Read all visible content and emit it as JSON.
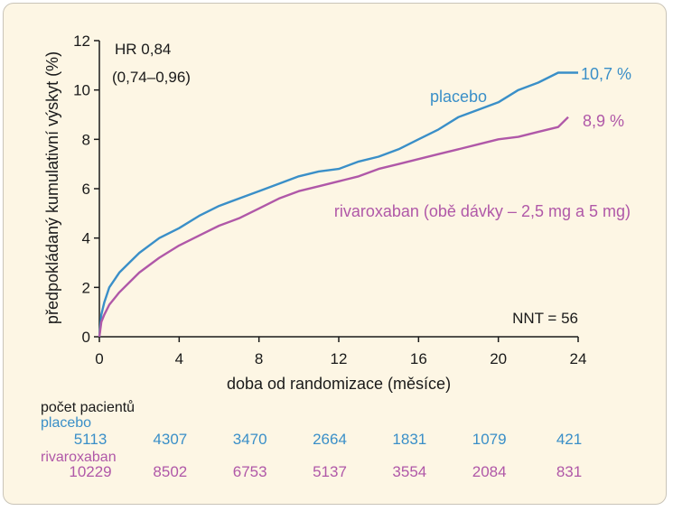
{
  "chart_data": {
    "type": "line",
    "xlabel": "doba od randomizace (měsíce)",
    "ylabel": "předpokládaný kumulativní výskyt (%)",
    "xlim": [
      0,
      24
    ],
    "ylim": [
      0,
      12
    ],
    "x_ticks": [
      0,
      4,
      8,
      12,
      16,
      20,
      24
    ],
    "y_ticks": [
      0,
      2,
      4,
      6,
      8,
      10,
      12
    ],
    "grid": false,
    "series": [
      {
        "name": "placebo",
        "color": "#3a8fc8",
        "end_label": "10,7 %",
        "points": [
          [
            0,
            0
          ],
          [
            0.1,
            0.9
          ],
          [
            0.25,
            1.4
          ],
          [
            0.5,
            2.0
          ],
          [
            1,
            2.6
          ],
          [
            1.5,
            3.0
          ],
          [
            2,
            3.4
          ],
          [
            3,
            4.0
          ],
          [
            4,
            4.4
          ],
          [
            5,
            4.9
          ],
          [
            6,
            5.3
          ],
          [
            7,
            5.6
          ],
          [
            8,
            5.9
          ],
          [
            9,
            6.2
          ],
          [
            10,
            6.5
          ],
          [
            11,
            6.7
          ],
          [
            12,
            6.8
          ],
          [
            13,
            7.1
          ],
          [
            14,
            7.3
          ],
          [
            15,
            7.6
          ],
          [
            16,
            8.0
          ],
          [
            17,
            8.4
          ],
          [
            18,
            8.9
          ],
          [
            19,
            9.2
          ],
          [
            20,
            9.5
          ],
          [
            21,
            10.0
          ],
          [
            22,
            10.3
          ],
          [
            23,
            10.7
          ],
          [
            24,
            10.7
          ]
        ]
      },
      {
        "name": "rivaroxaban (obě dávky – 2,5 mg a 5 mg)",
        "color": "#b058a8",
        "end_label": "8,9 %",
        "points": [
          [
            0,
            0
          ],
          [
            0.1,
            0.6
          ],
          [
            0.25,
            0.9
          ],
          [
            0.5,
            1.3
          ],
          [
            1,
            1.8
          ],
          [
            1.5,
            2.2
          ],
          [
            2,
            2.6
          ],
          [
            3,
            3.2
          ],
          [
            4,
            3.7
          ],
          [
            5,
            4.1
          ],
          [
            6,
            4.5
          ],
          [
            7,
            4.8
          ],
          [
            8,
            5.2
          ],
          [
            9,
            5.6
          ],
          [
            10,
            5.9
          ],
          [
            11,
            6.1
          ],
          [
            12,
            6.3
          ],
          [
            13,
            6.5
          ],
          [
            14,
            6.8
          ],
          [
            15,
            7.0
          ],
          [
            16,
            7.2
          ],
          [
            17,
            7.4
          ],
          [
            18,
            7.6
          ],
          [
            19,
            7.8
          ],
          [
            20,
            8.0
          ],
          [
            21,
            8.1
          ],
          [
            22,
            8.3
          ],
          [
            23,
            8.5
          ],
          [
            23.5,
            8.9
          ]
        ]
      }
    ],
    "annotations": {
      "hr_line1": "HR 0,84",
      "hr_line2": "(0,74–0,96)",
      "nnt": "NNT = 56"
    },
    "patients": {
      "header": "počet pacientů",
      "rows": [
        {
          "name": "placebo",
          "color": "#3a8fc8",
          "values": [
            "5113",
            "4307",
            "3470",
            "2664",
            "1831",
            "1079",
            "421"
          ]
        },
        {
          "name": "rivaroxaban",
          "color": "#b058a8",
          "values": [
            "10229",
            "8502",
            "6753",
            "5137",
            "3554",
            "2084",
            "831"
          ]
        }
      ]
    }
  }
}
